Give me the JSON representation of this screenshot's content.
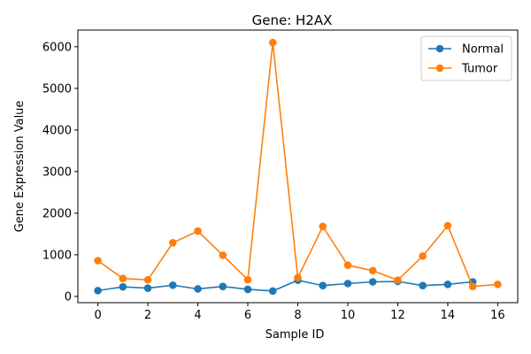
{
  "chart_data": {
    "type": "line",
    "title": "Gene: H2AX",
    "xlabel": "Sample ID",
    "ylabel": "Gene Expression Value",
    "xlim": [
      -0.8,
      16.8
    ],
    "ylim": [
      -150,
      6400
    ],
    "xticks": [
      0,
      2,
      4,
      6,
      8,
      10,
      12,
      14,
      16
    ],
    "yticks": [
      0,
      1000,
      2000,
      3000,
      4000,
      5000,
      6000
    ],
    "grid": false,
    "legend_position": "top-right",
    "series": [
      {
        "name": "Normal",
        "color": "#1f77b4",
        "x": [
          0,
          1,
          2,
          3,
          4,
          5,
          6,
          7,
          8,
          9,
          10,
          11,
          12,
          13,
          14,
          15
        ],
        "y": [
          140,
          230,
          200,
          270,
          180,
          240,
          170,
          130,
          390,
          260,
          310,
          350,
          360,
          260,
          290,
          350
        ]
      },
      {
        "name": "Tumor",
        "color": "#ff7f0e",
        "x": [
          0,
          1,
          2,
          3,
          4,
          5,
          6,
          7,
          8,
          9,
          10,
          11,
          12,
          13,
          14,
          15,
          16
        ],
        "y": [
          860,
          430,
          400,
          1290,
          1570,
          990,
          400,
          6100,
          450,
          1680,
          750,
          620,
          390,
          970,
          1700,
          240,
          290
        ]
      }
    ]
  }
}
